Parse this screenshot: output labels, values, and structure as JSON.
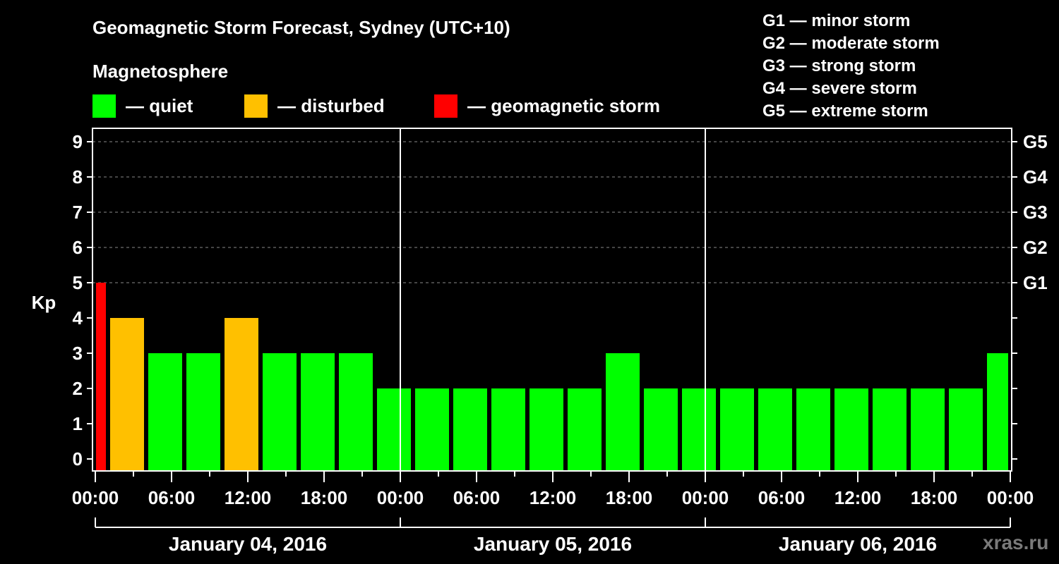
{
  "header": {
    "title": "Geomagnetic Storm Forecast, Sydney (UTC+10)",
    "subtitle": "Magnetosphere"
  },
  "legend": [
    {
      "label": "— quiet",
      "color": "#00ff00"
    },
    {
      "label": "— disturbed",
      "color": "#ffc000"
    },
    {
      "label": "— geomagnetic storm",
      "color": "#ff0000"
    }
  ],
  "g_scale": [
    "G1 — minor storm",
    "G2 — moderate storm",
    "G3 — strong storm",
    "G4 — severe storm",
    "G5 — extreme storm"
  ],
  "watermark": "xras.ru",
  "chart_data": {
    "type": "bar",
    "title": "Geomagnetic Storm Forecast, Sydney (UTC+10)",
    "subtitle": "Magnetosphere",
    "ylabel": "Kp",
    "xlabel": "",
    "ylim": [
      0,
      9
    ],
    "yticks": [
      0,
      1,
      2,
      3,
      4,
      5,
      6,
      7,
      8,
      9
    ],
    "right_axis_labels": [
      {
        "kp": 5,
        "label": "G1"
      },
      {
        "kp": 6,
        "label": "G2"
      },
      {
        "kp": 7,
        "label": "G3"
      },
      {
        "kp": 8,
        "label": "G4"
      },
      {
        "kp": 9,
        "label": "G5"
      }
    ],
    "grid": "dashed horizontal at Kp 5-9",
    "xtick_labels": [
      "00:00",
      "06:00",
      "12:00",
      "18:00",
      "00:00",
      "06:00",
      "12:00",
      "18:00",
      "00:00",
      "06:00",
      "12:00",
      "18:00",
      "00:00"
    ],
    "days": [
      "January 04, 2016",
      "January 05, 2016",
      "January 06, 2016"
    ],
    "colors": {
      "quiet": "#00ff00",
      "disturbed": "#ffc000",
      "storm": "#ff0000"
    },
    "bars": [
      {
        "start_h": 0,
        "end_h": 1,
        "kp": 5,
        "status": "storm"
      },
      {
        "start_h": 1,
        "end_h": 4,
        "kp": 4,
        "status": "disturbed"
      },
      {
        "start_h": 4,
        "end_h": 7,
        "kp": 3,
        "status": "quiet"
      },
      {
        "start_h": 7,
        "end_h": 10,
        "kp": 3,
        "status": "quiet"
      },
      {
        "start_h": 10,
        "end_h": 13,
        "kp": 4,
        "status": "disturbed"
      },
      {
        "start_h": 13,
        "end_h": 16,
        "kp": 3,
        "status": "quiet"
      },
      {
        "start_h": 16,
        "end_h": 19,
        "kp": 3,
        "status": "quiet"
      },
      {
        "start_h": 19,
        "end_h": 22,
        "kp": 3,
        "status": "quiet"
      },
      {
        "start_h": 22,
        "end_h": 25,
        "kp": 2,
        "status": "quiet"
      },
      {
        "start_h": 25,
        "end_h": 28,
        "kp": 2,
        "status": "quiet"
      },
      {
        "start_h": 28,
        "end_h": 31,
        "kp": 2,
        "status": "quiet"
      },
      {
        "start_h": 31,
        "end_h": 34,
        "kp": 2,
        "status": "quiet"
      },
      {
        "start_h": 34,
        "end_h": 37,
        "kp": 2,
        "status": "quiet"
      },
      {
        "start_h": 37,
        "end_h": 40,
        "kp": 2,
        "status": "quiet"
      },
      {
        "start_h": 40,
        "end_h": 43,
        "kp": 3,
        "status": "quiet"
      },
      {
        "start_h": 43,
        "end_h": 46,
        "kp": 2,
        "status": "quiet"
      },
      {
        "start_h": 46,
        "end_h": 49,
        "kp": 2,
        "status": "quiet"
      },
      {
        "start_h": 49,
        "end_h": 52,
        "kp": 2,
        "status": "quiet"
      },
      {
        "start_h": 52,
        "end_h": 55,
        "kp": 2,
        "status": "quiet"
      },
      {
        "start_h": 55,
        "end_h": 58,
        "kp": 2,
        "status": "quiet"
      },
      {
        "start_h": 58,
        "end_h": 61,
        "kp": 2,
        "status": "quiet"
      },
      {
        "start_h": 61,
        "end_h": 64,
        "kp": 2,
        "status": "quiet"
      },
      {
        "start_h": 64,
        "end_h": 67,
        "kp": 2,
        "status": "quiet"
      },
      {
        "start_h": 67,
        "end_h": 70,
        "kp": 2,
        "status": "quiet"
      },
      {
        "start_h": 70,
        "end_h": 72,
        "kp": 3,
        "status": "quiet"
      }
    ]
  }
}
